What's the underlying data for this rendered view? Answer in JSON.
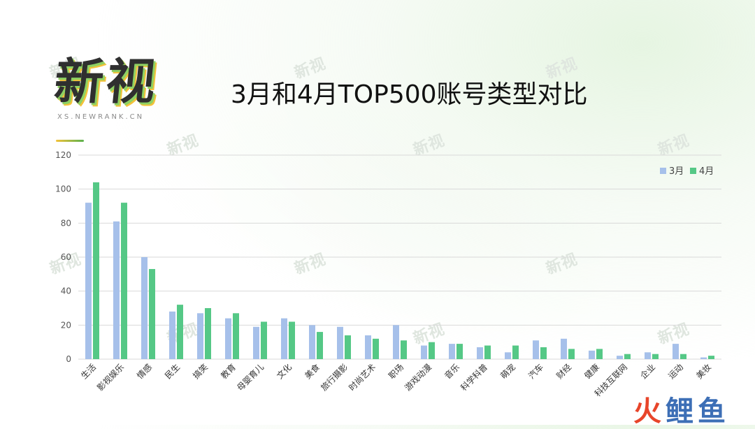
{
  "logo": {
    "main": "新视",
    "sub": "XS.NEWRANK.CN"
  },
  "watermark_text": "新视",
  "brand": {
    "part1": "火",
    "part2": "鲤鱼"
  },
  "colors": {
    "march": "#a6c0ea",
    "april": "#55c886",
    "grid": "#d9d9d9",
    "brand_red": "#e8452a",
    "brand_blue": "#3d6fb6"
  },
  "chart_data": {
    "type": "bar",
    "title": "3月和4月TOP500账号类型对比",
    "categories": [
      "生活",
      "影视娱乐",
      "情感",
      "民生",
      "搞笑",
      "教育",
      "母婴育儿",
      "文化",
      "美食",
      "旅行摄影",
      "时尚艺术",
      "职场",
      "游戏动漫",
      "音乐",
      "科学科普",
      "萌宠",
      "汽车",
      "财经",
      "健康",
      "科技互联网",
      "企业",
      "运动",
      "美妆"
    ],
    "series": [
      {
        "name": "3月",
        "values": [
          92,
          81,
          60,
          28,
          27,
          24,
          19,
          24,
          20,
          19,
          14,
          20,
          8,
          9,
          7,
          4,
          11,
          12,
          5,
          2,
          4,
          9,
          1
        ]
      },
      {
        "name": "4月",
        "values": [
          104,
          92,
          53,
          32,
          30,
          27,
          22,
          22,
          16,
          14,
          12,
          11,
          10,
          9,
          8,
          8,
          7,
          6,
          6,
          3,
          3,
          3,
          2
        ]
      }
    ],
    "ylim": [
      0,
      120
    ],
    "yticks": [
      "0",
      "20",
      "40",
      "60",
      "80",
      "100",
      "120"
    ],
    "grid": true,
    "legend_position": "top-right"
  }
}
